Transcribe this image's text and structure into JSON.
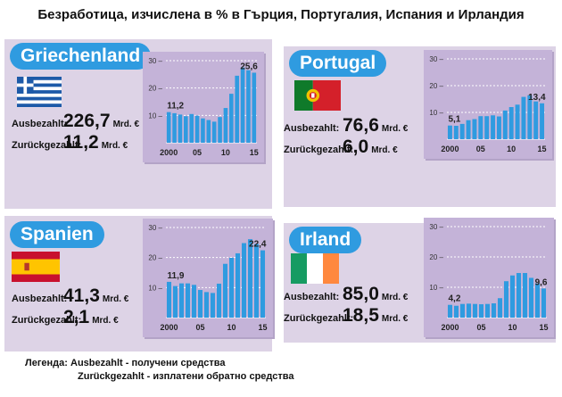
{
  "title": "Безработица, изчислена в % в Гърция, Португалия, Испания и Ирландия",
  "labels": {
    "ausbezahlt": "Ausbezahlt:",
    "zurueck": "Zurückgezahlt:",
    "unit": "Mrd. €"
  },
  "legend": {
    "prefix": "Легенда:",
    "line1": "Ausbezahlt - получени средства",
    "line2": "Zurückgezahlt - изплатени обратно средства"
  },
  "colors": {
    "pill": "#2f9be0",
    "panel": "#ddd3e6",
    "chart_bg": "#c4b3d8",
    "bar": "#2f9be0",
    "grid": "#ffffff"
  },
  "countries": [
    {
      "name": "Griechenland",
      "flag": "greece-flag",
      "ausbezahlt": "226,7",
      "zurueck": "11,2",
      "start_label": "11,2",
      "end_label": "25,6"
    },
    {
      "name": "Portugal",
      "flag": "portugal-flag",
      "ausbezahlt": "76,6",
      "zurueck": "6,0",
      "start_label": "5,1",
      "end_label": "13,4"
    },
    {
      "name": "Spanien",
      "flag": "spain-flag",
      "ausbezahlt": "41,3",
      "zurueck": "2,1",
      "start_label": "11,9",
      "end_label": "22,4"
    },
    {
      "name": "Irland",
      "flag": "ireland-flag",
      "ausbezahlt": "85,0",
      "zurueck": "18,5",
      "start_label": "4,2",
      "end_label": "9,6"
    }
  ],
  "chart_data": [
    {
      "type": "bar",
      "title": "Griechenland",
      "x": [
        2000,
        2001,
        2002,
        2003,
        2004,
        2005,
        2006,
        2007,
        2008,
        2009,
        2010,
        2011,
        2012,
        2013,
        2014,
        2015
      ],
      "values": [
        11.2,
        10.8,
        10.3,
        9.7,
        10.5,
        9.9,
        8.9,
        8.3,
        7.7,
        9.4,
        12.7,
        17.9,
        24.5,
        27.5,
        26.5,
        25.6
      ],
      "x_ticks": [
        "2000",
        "05",
        "10",
        "15"
      ],
      "y_ticks": [
        "10",
        "20",
        "30"
      ],
      "ylim": [
        0,
        30
      ]
    },
    {
      "type": "bar",
      "title": "Portugal",
      "x": [
        2000,
        2001,
        2002,
        2003,
        2004,
        2005,
        2006,
        2007,
        2008,
        2009,
        2010,
        2011,
        2012,
        2013,
        2014,
        2015
      ],
      "values": [
        5.1,
        5.0,
        5.7,
        7.1,
        7.5,
        8.6,
        8.6,
        8.9,
        8.5,
        10.7,
        12.0,
        12.9,
        15.8,
        16.4,
        14.1,
        13.4
      ],
      "x_ticks": [
        "2000",
        "05",
        "10",
        "15"
      ],
      "y_ticks": [
        "10",
        "20",
        "30"
      ],
      "ylim": [
        0,
        30
      ]
    },
    {
      "type": "bar",
      "title": "Spanien",
      "x": [
        2000,
        2001,
        2002,
        2003,
        2004,
        2005,
        2006,
        2007,
        2008,
        2009,
        2010,
        2011,
        2012,
        2013,
        2014,
        2015
      ],
      "values": [
        11.9,
        10.5,
        11.4,
        11.4,
        10.9,
        9.2,
        8.5,
        8.2,
        11.3,
        17.9,
        19.9,
        21.4,
        24.8,
        26.1,
        24.5,
        22.4
      ],
      "x_ticks": [
        "2000",
        "05",
        "10",
        "15"
      ],
      "y_ticks": [
        "10",
        "20",
        "30"
      ],
      "ylim": [
        0,
        30
      ]
    },
    {
      "type": "bar",
      "title": "Irland",
      "x": [
        2000,
        2001,
        2002,
        2003,
        2004,
        2005,
        2006,
        2007,
        2008,
        2009,
        2010,
        2011,
        2012,
        2013,
        2014,
        2015
      ],
      "values": [
        4.2,
        3.9,
        4.5,
        4.6,
        4.5,
        4.4,
        4.5,
        4.7,
        6.4,
        12.0,
        13.9,
        14.7,
        14.7,
        13.1,
        11.3,
        9.6
      ],
      "x_ticks": [
        "2000",
        "05",
        "10",
        "15"
      ],
      "y_ticks": [
        "10",
        "20",
        "30"
      ],
      "ylim": [
        0,
        30
      ]
    }
  ]
}
